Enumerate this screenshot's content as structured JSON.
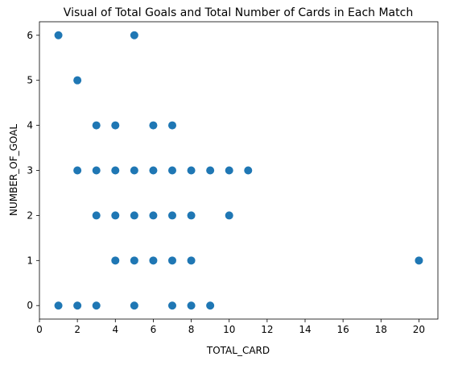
{
  "chart_data": {
    "type": "scatter",
    "title": "Visual of Total Goals and Total Number of Cards in Each Match",
    "xlabel": "TOTAL_CARD",
    "ylabel": "NUMBER_OF_GOAL",
    "xlim": [
      0,
      21
    ],
    "ylim": [
      -0.3,
      6.3
    ],
    "xticks": [
      "0",
      "2",
      "4",
      "6",
      "8",
      "10",
      "12",
      "14",
      "16",
      "18",
      "20"
    ],
    "yticks": [
      "0",
      "1",
      "2",
      "3",
      "4",
      "5",
      "6"
    ],
    "grid": false,
    "marker_color": "#1f77b4",
    "series": [
      {
        "x": [
          1,
          5,
          2,
          3,
          4,
          6,
          7,
          2,
          3,
          4,
          5,
          6,
          7,
          8,
          9,
          10,
          11,
          3,
          4,
          5,
          6,
          7,
          8,
          10,
          4,
          5,
          6,
          7,
          8,
          20,
          1,
          2,
          3,
          5,
          7,
          8,
          9
        ],
        "y": [
          6,
          6,
          5,
          4,
          4,
          4,
          4,
          3,
          3,
          3,
          3,
          3,
          3,
          3,
          3,
          3,
          3,
          2,
          2,
          2,
          2,
          2,
          2,
          2,
          1,
          1,
          1,
          1,
          1,
          1,
          0,
          0,
          0,
          0,
          0,
          0,
          0
        ]
      }
    ]
  }
}
